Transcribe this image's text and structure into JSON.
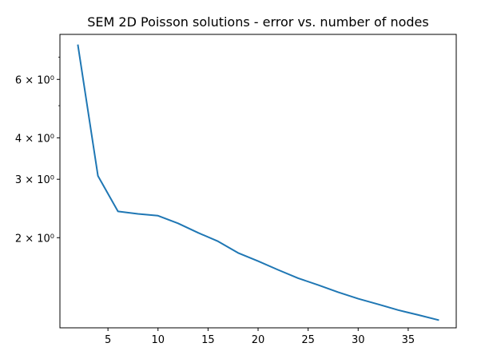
{
  "chart_data": {
    "type": "line",
    "title": "SEM 2D Poisson solutions - error vs. number of nodes",
    "xlabel": "",
    "ylabel": "",
    "xscale": "linear",
    "yscale": "log",
    "xlim": [
      0.2,
      39.8
    ],
    "ylim": [
      1.07,
      8.2
    ],
    "grid": false,
    "legend": "none",
    "x_ticks": [
      5,
      10,
      15,
      20,
      25,
      30,
      35
    ],
    "x_tick_labels": [
      "5",
      "10",
      "15",
      "20",
      "25",
      "30",
      "35"
    ],
    "y_major_ticks": [
      2,
      3,
      4,
      6
    ],
    "y_major_tick_labels": [
      "2 × 10⁰",
      "3 × 10⁰",
      "4 × 10⁰",
      "6 × 10⁰"
    ],
    "y_minor_ticks": [
      5,
      7
    ],
    "series": [
      {
        "color": "#1f77b4",
        "x": [
          2,
          4,
          6,
          8,
          10,
          12,
          14,
          16,
          18,
          20,
          22,
          24,
          26,
          28,
          30,
          32,
          34,
          36,
          38
        ],
        "y": [
          7.6,
          3.07,
          2.4,
          2.36,
          2.33,
          2.21,
          2.07,
          1.95,
          1.8,
          1.7,
          1.6,
          1.51,
          1.44,
          1.37,
          1.31,
          1.26,
          1.21,
          1.17,
          1.13
        ]
      }
    ]
  }
}
